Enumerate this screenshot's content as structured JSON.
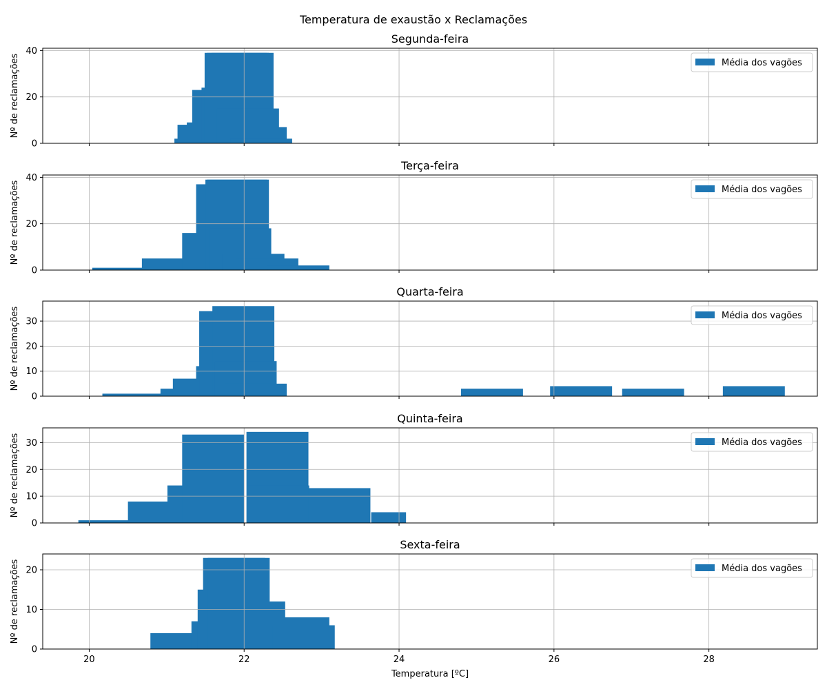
{
  "suptitle": "Temperatura de exaustão x Reclamações",
  "bar_color": "#1f77b4",
  "chart_data": [
    {
      "type": "bar",
      "title": "Segunda-feira",
      "ylabel": "Nº de reclamações",
      "xlabel": "",
      "xlim": [
        19.4,
        29.4
      ],
      "ylim": [
        0,
        41
      ],
      "yticks": [
        0,
        20,
        40
      ],
      "xticks": [
        20,
        22,
        24,
        26,
        28
      ],
      "show_xticklabels": false,
      "grid": true,
      "legend": {
        "label": "Média dos vagões",
        "position": "top-right"
      },
      "bars": [
        {
          "x0": 21.1,
          "x1": 21.9,
          "y": 2
        },
        {
          "x0": 21.14,
          "x1": 21.94,
          "y": 8
        },
        {
          "x0": 21.26,
          "x1": 22.06,
          "y": 9
        },
        {
          "x0": 21.33,
          "x1": 22.13,
          "y": 23
        },
        {
          "x0": 21.45,
          "x1": 22.25,
          "y": 24
        },
        {
          "x0": 21.49,
          "x1": 22.29,
          "y": 39
        },
        {
          "x0": 21.52,
          "x1": 22.32,
          "y": 39
        },
        {
          "x0": 21.58,
          "x1": 22.38,
          "y": 39
        },
        {
          "x0": 21.65,
          "x1": 22.45,
          "y": 15
        },
        {
          "x0": 21.75,
          "x1": 22.55,
          "y": 7
        },
        {
          "x0": 21.82,
          "x1": 22.62,
          "y": 2
        }
      ]
    },
    {
      "type": "bar",
      "title": "Terça-feira",
      "ylabel": "Nº de reclamações",
      "xlabel": "",
      "xlim": [
        19.4,
        29.4
      ],
      "ylim": [
        0,
        41
      ],
      "yticks": [
        0,
        20,
        40
      ],
      "xticks": [
        20,
        22,
        24,
        26,
        28
      ],
      "show_xticklabels": false,
      "grid": true,
      "legend": {
        "label": "Média dos vagões",
        "position": "top-right"
      },
      "bars": [
        {
          "x0": 20.04,
          "x1": 20.84,
          "y": 1
        },
        {
          "x0": 20.68,
          "x1": 21.48,
          "y": 5
        },
        {
          "x0": 21.2,
          "x1": 22.0,
          "y": 16
        },
        {
          "x0": 21.38,
          "x1": 22.18,
          "y": 37
        },
        {
          "x0": 21.5,
          "x1": 22.3,
          "y": 39
        },
        {
          "x0": 21.52,
          "x1": 22.32,
          "y": 39
        },
        {
          "x0": 21.55,
          "x1": 22.35,
          "y": 18
        },
        {
          "x0": 21.72,
          "x1": 22.52,
          "y": 7
        },
        {
          "x0": 21.9,
          "x1": 22.7,
          "y": 5
        },
        {
          "x0": 22.3,
          "x1": 23.1,
          "y": 2
        }
      ]
    },
    {
      "type": "bar",
      "title": "Quarta-feira",
      "ylabel": "Nº de reclamações",
      "xlabel": "",
      "xlim": [
        19.4,
        29.4
      ],
      "ylim": [
        0,
        38
      ],
      "yticks": [
        0,
        10,
        20,
        30
      ],
      "xticks": [
        20,
        22,
        24,
        26,
        28
      ],
      "show_xticklabels": false,
      "grid": true,
      "legend": {
        "label": "Média dos vagões",
        "position": "top-right"
      },
      "bars": [
        {
          "x0": 20.17,
          "x1": 20.97,
          "y": 1
        },
        {
          "x0": 20.92,
          "x1": 21.72,
          "y": 3
        },
        {
          "x0": 21.08,
          "x1": 21.88,
          "y": 7
        },
        {
          "x0": 21.38,
          "x1": 22.18,
          "y": 12
        },
        {
          "x0": 21.42,
          "x1": 22.22,
          "y": 34
        },
        {
          "x0": 21.59,
          "x1": 22.39,
          "y": 36
        },
        {
          "x0": 21.62,
          "x1": 22.42,
          "y": 14
        },
        {
          "x0": 21.75,
          "x1": 22.55,
          "y": 5
        },
        {
          "x0": 24.8,
          "x1": 25.6,
          "y": 3
        },
        {
          "x0": 25.95,
          "x1": 26.75,
          "y": 4
        },
        {
          "x0": 26.88,
          "x1": 27.68,
          "y": 3
        },
        {
          "x0": 28.18,
          "x1": 28.98,
          "y": 4
        }
      ]
    },
    {
      "type": "bar",
      "title": "Quinta-feira",
      "ylabel": "Nº de reclamações",
      "xlabel": "",
      "xlim": [
        19.4,
        29.4
      ],
      "ylim": [
        0,
        35.5
      ],
      "yticks": [
        0,
        10,
        20,
        30
      ],
      "xticks": [
        20,
        22,
        24,
        26,
        28
      ],
      "show_xticklabels": false,
      "grid": true,
      "legend": {
        "label": "Média dos vagões",
        "position": "top-right"
      },
      "bars": [
        {
          "x0": 19.86,
          "x1": 20.66,
          "y": 1
        },
        {
          "x0": 20.5,
          "x1": 21.3,
          "y": 8
        },
        {
          "x0": 21.01,
          "x1": 21.81,
          "y": 14
        },
        {
          "x0": 21.2,
          "x1": 22.0,
          "y": 33
        },
        {
          "x0": 22.03,
          "x1": 22.83,
          "y": 34
        },
        {
          "x0": 22.04,
          "x1": 22.84,
          "y": 14
        },
        {
          "x0": 22.83,
          "x1": 23.63,
          "y": 13
        },
        {
          "x0": 23.64,
          "x1": 24.09,
          "y": 4
        }
      ]
    },
    {
      "type": "bar",
      "title": "Sexta-feira",
      "ylabel": "Nº de reclamações",
      "xlabel": "Temperatura [ºC]",
      "xlim": [
        19.4,
        29.4
      ],
      "ylim": [
        0,
        24
      ],
      "yticks": [
        0,
        10,
        20
      ],
      "xticks": [
        20,
        22,
        24,
        26,
        28
      ],
      "show_xticklabels": true,
      "grid": true,
      "legend": {
        "label": "Média dos vagões",
        "position": "top-right"
      },
      "bars": [
        {
          "x0": 20.79,
          "x1": 21.59,
          "y": 4
        },
        {
          "x0": 21.32,
          "x1": 22.12,
          "y": 7
        },
        {
          "x0": 21.4,
          "x1": 22.2,
          "y": 15
        },
        {
          "x0": 21.47,
          "x1": 22.27,
          "y": 23
        },
        {
          "x0": 21.53,
          "x1": 22.33,
          "y": 23
        },
        {
          "x0": 21.73,
          "x1": 22.53,
          "y": 12
        },
        {
          "x0": 21.92,
          "x1": 22.72,
          "y": 8
        },
        {
          "x0": 22.3,
          "x1": 23.1,
          "y": 8
        },
        {
          "x0": 22.37,
          "x1": 23.17,
          "y": 6
        }
      ]
    }
  ]
}
